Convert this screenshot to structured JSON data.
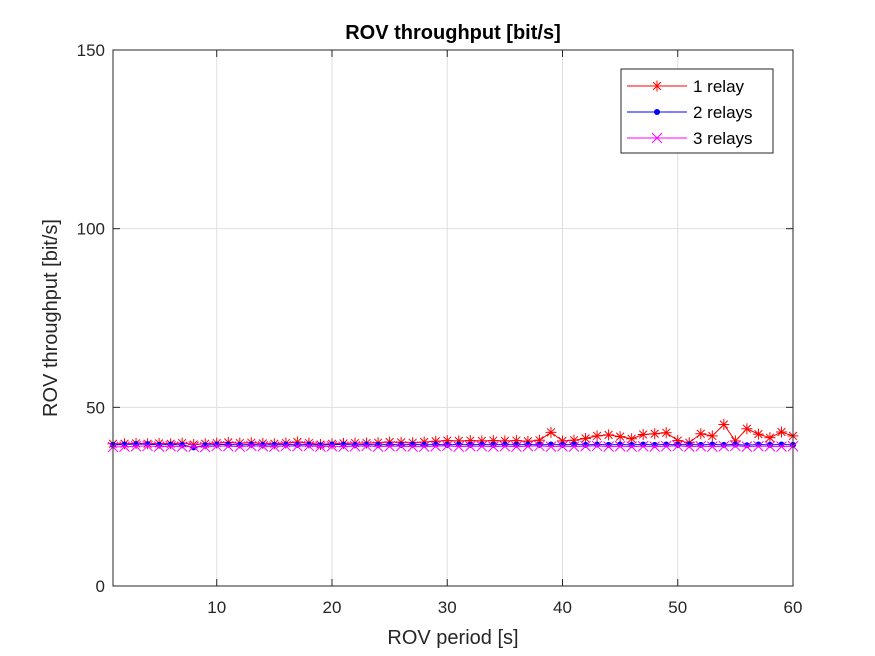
{
  "chart_data": {
    "type": "line",
    "title": "ROV throughput [bit/s]",
    "xlabel": "ROV period [s]",
    "ylabel": "ROV throughput [bit/s]",
    "xlim": [
      1,
      60
    ],
    "ylim": [
      0,
      150
    ],
    "xticks": [
      10,
      20,
      30,
      40,
      50,
      60
    ],
    "yticks": [
      0,
      50,
      100,
      150
    ],
    "grid": true,
    "legend_position": "top-right",
    "x": [
      1,
      2,
      3,
      4,
      5,
      6,
      7,
      8,
      9,
      10,
      11,
      12,
      13,
      14,
      15,
      16,
      17,
      18,
      19,
      20,
      21,
      22,
      23,
      24,
      25,
      26,
      27,
      28,
      29,
      30,
      31,
      32,
      33,
      34,
      35,
      36,
      37,
      38,
      39,
      40,
      41,
      42,
      43,
      44,
      45,
      46,
      47,
      48,
      49,
      50,
      51,
      52,
      53,
      54,
      55,
      56,
      57,
      58,
      59,
      60
    ],
    "series": [
      {
        "name": "1 relay",
        "color": "#ff0000",
        "marker": "asterisk",
        "values": [
          39.8,
          39.8,
          39.9,
          39.8,
          39.9,
          39.8,
          40.0,
          39.6,
          39.8,
          40.0,
          40.2,
          40.0,
          40.1,
          39.9,
          39.8,
          40.0,
          40.3,
          40.0,
          39.6,
          39.8,
          39.9,
          40.0,
          40.0,
          40.1,
          40.3,
          40.2,
          40.1,
          40.3,
          40.5,
          40.7,
          40.6,
          40.7,
          40.6,
          40.7,
          40.6,
          40.7,
          40.5,
          40.8,
          43.0,
          40.6,
          40.8,
          41.3,
          42.0,
          42.3,
          41.8,
          41.2,
          42.4,
          42.6,
          42.9,
          40.7,
          40.1,
          42.6,
          42.0,
          45.2,
          40.6,
          44.0,
          42.5,
          41.5,
          43.1,
          42.0
        ]
      },
      {
        "name": "2 relays",
        "color": "#0000ff",
        "marker": "dot",
        "values": [
          39.5,
          39.6,
          39.7,
          39.7,
          39.5,
          39.6,
          39.5,
          38.8,
          39.4,
          39.6,
          39.6,
          39.5,
          39.6,
          39.5,
          39.5,
          39.6,
          39.5,
          39.6,
          39.4,
          39.6,
          39.6,
          39.5,
          39.6,
          39.5,
          39.6,
          39.5,
          39.6,
          39.5,
          39.6,
          39.5,
          39.6,
          39.5,
          39.6,
          39.5,
          39.6,
          39.5,
          39.6,
          39.5,
          39.6,
          39.5,
          39.6,
          39.5,
          39.6,
          39.5,
          39.6,
          39.5,
          39.6,
          39.5,
          39.6,
          39.5,
          39.6,
          39.5,
          39.6,
          39.5,
          39.6,
          39.4,
          39.6,
          39.5,
          39.6,
          39.5
        ]
      },
      {
        "name": "3 relays",
        "color": "#ff00ff",
        "marker": "x",
        "values": [
          38.9,
          39.0,
          39.1,
          39.2,
          39.0,
          39.1,
          39.0,
          39.0,
          38.9,
          39.2,
          39.1,
          39.0,
          39.2,
          39.1,
          39.0,
          39.2,
          39.1,
          39.2,
          39.0,
          39.1,
          39.0,
          39.1,
          39.2,
          39.0,
          39.1,
          39.1,
          39.0,
          39.0,
          39.1,
          39.2,
          39.0,
          39.1,
          39.1,
          39.0,
          39.1,
          39.0,
          39.1,
          39.2,
          39.0,
          39.1,
          39.0,
          39.1,
          39.2,
          39.0,
          39.1,
          39.0,
          39.1,
          39.0,
          39.1,
          39.2,
          39.0,
          39.1,
          39.0,
          39.1,
          39.2,
          39.0,
          39.1,
          39.1,
          39.0,
          39.1
        ]
      }
    ]
  }
}
